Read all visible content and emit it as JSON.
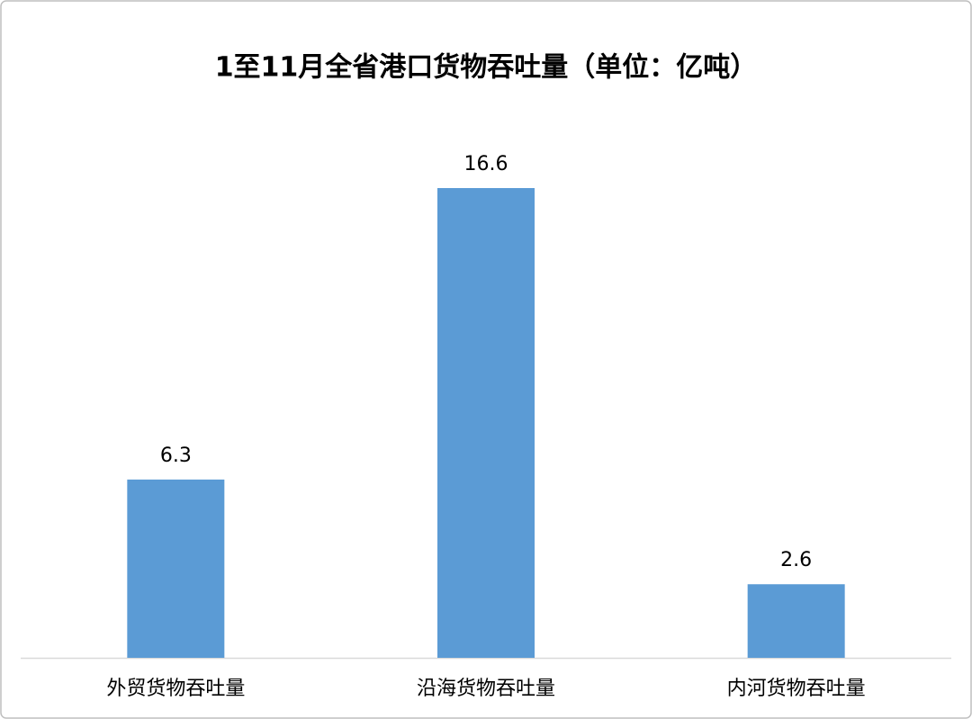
{
  "chart_data": {
    "type": "bar",
    "title": "1至11月全省港口货物吞吐量（单位：亿吨）",
    "categories": [
      "外贸货物吞吐量",
      "沿海货物吞吐量",
      "内河货物吞吐量"
    ],
    "values": [
      6.3,
      16.6,
      2.6
    ],
    "color": "#5b9bd5"
  }
}
